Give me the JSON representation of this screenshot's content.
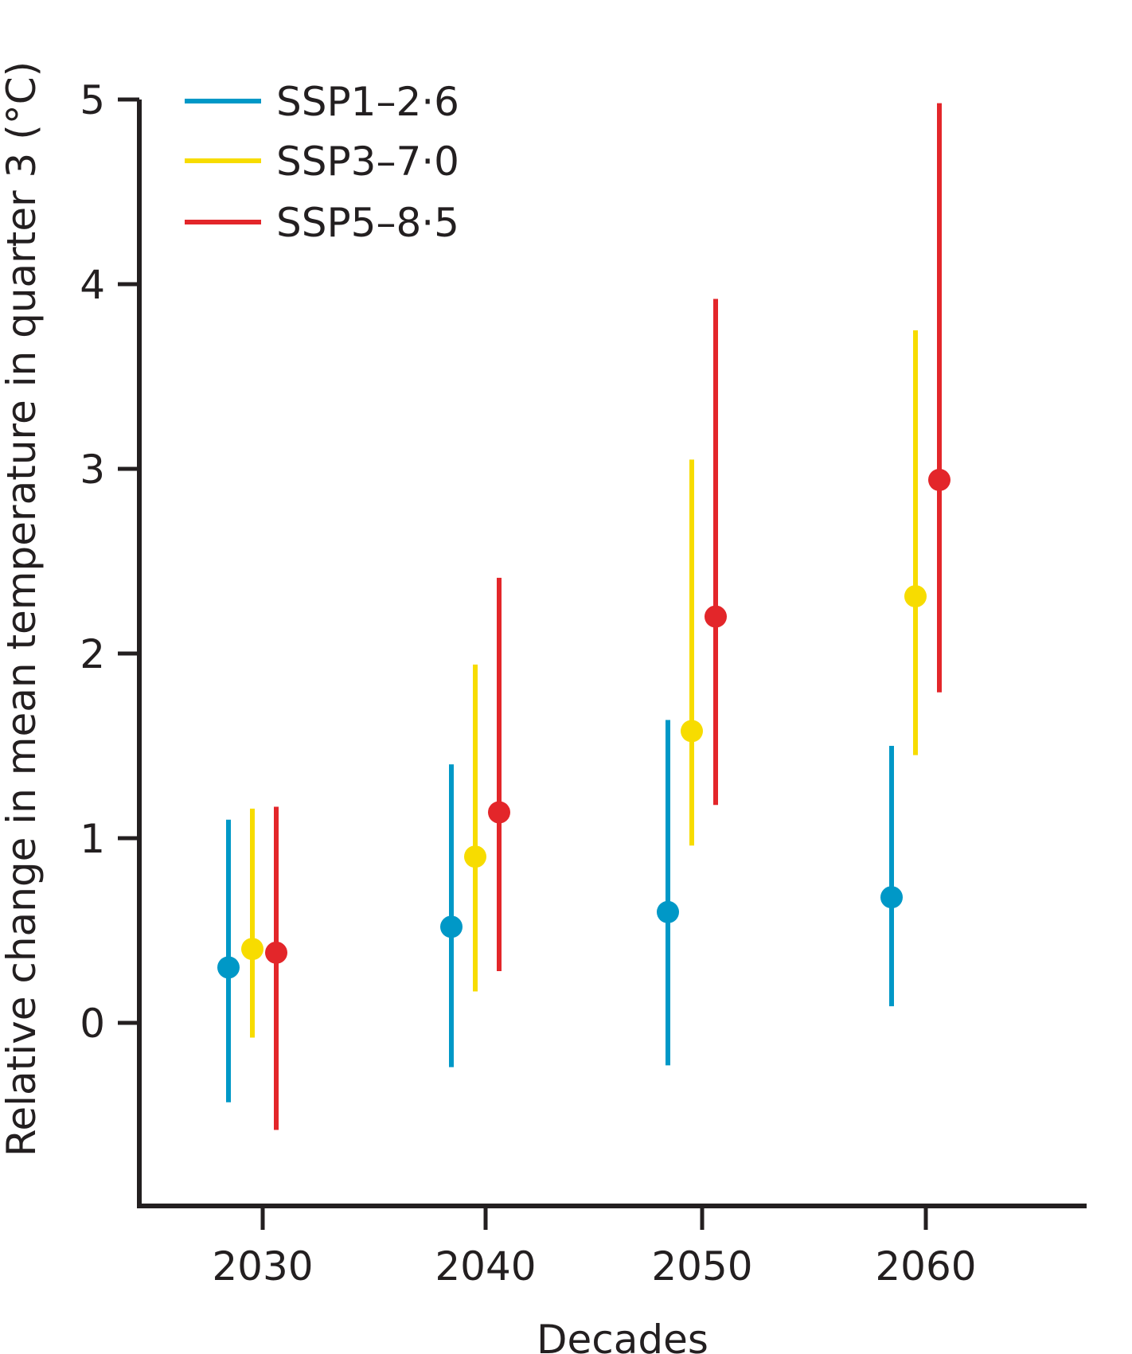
{
  "chart_data": {
    "type": "scatter",
    "title": "",
    "xlabel": "Decades",
    "ylabel": "Relative change in mean temperature in quarter 3 (°C)",
    "categories": [
      "2030",
      "2040",
      "2050",
      "2060"
    ],
    "ylim": [
      -1.0,
      5.0
    ],
    "yticks": [
      0,
      1,
      2,
      3,
      4,
      5
    ],
    "grid": false,
    "legend_position": "top-left",
    "series": [
      {
        "name": "SSP1–2·6",
        "color": "#0098c7",
        "values": [
          0.3,
          0.52,
          0.6,
          0.68
        ],
        "lower": [
          -0.43,
          -0.24,
          -0.23,
          0.09
        ],
        "upper": [
          1.1,
          1.4,
          1.64,
          1.5
        ]
      },
      {
        "name": "SSP3–7·0",
        "color": "#f7dc00",
        "values": [
          0.4,
          0.9,
          1.58,
          2.31
        ],
        "lower": [
          -0.08,
          0.17,
          0.96,
          1.45
        ],
        "upper": [
          1.16,
          1.94,
          3.05,
          3.75
        ]
      },
      {
        "name": "SSP5–8·5",
        "color": "#e3262a",
        "values": [
          0.38,
          1.14,
          2.2,
          2.94
        ],
        "lower": [
          -0.58,
          0.28,
          1.18,
          1.79
        ],
        "upper": [
          1.17,
          2.41,
          3.92,
          4.98
        ]
      }
    ]
  }
}
